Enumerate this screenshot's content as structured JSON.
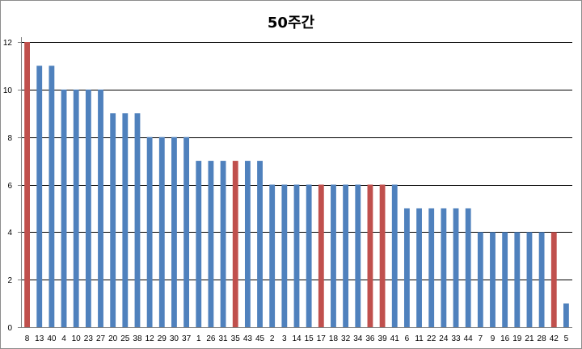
{
  "chart_data": {
    "type": "bar",
    "title": "50주간",
    "xlabel": "",
    "ylabel": "",
    "ylim": [
      0,
      12
    ],
    "yticks": [
      0,
      2,
      4,
      6,
      8,
      10,
      12
    ],
    "grid": "horizontal",
    "legend": "none",
    "categories": [
      "8",
      "13",
      "40",
      "4",
      "10",
      "23",
      "27",
      "20",
      "25",
      "38",
      "12",
      "29",
      "30",
      "37",
      "1",
      "26",
      "31",
      "35",
      "43",
      "45",
      "2",
      "3",
      "14",
      "15",
      "17",
      "18",
      "32",
      "34",
      "36",
      "39",
      "41",
      "6",
      "11",
      "22",
      "24",
      "33",
      "44",
      "7",
      "9",
      "16",
      "19",
      "21",
      "28",
      "42",
      "5"
    ],
    "values": [
      12,
      11,
      11,
      10,
      10,
      10,
      10,
      9,
      9,
      9,
      8,
      8,
      8,
      8,
      7,
      7,
      7,
      7,
      7,
      7,
      6,
      6,
      6,
      6,
      6,
      6,
      6,
      6,
      6,
      6,
      6,
      5,
      5,
      5,
      5,
      5,
      5,
      4,
      4,
      4,
      4,
      4,
      4,
      4,
      1
    ],
    "highlighted_categories": [
      "8",
      "35",
      "17",
      "36",
      "39",
      "42"
    ],
    "colors": {
      "bar": "#4f81bd",
      "highlight": "#c0504d",
      "grid": "#000000",
      "axis": "#808080"
    }
  }
}
